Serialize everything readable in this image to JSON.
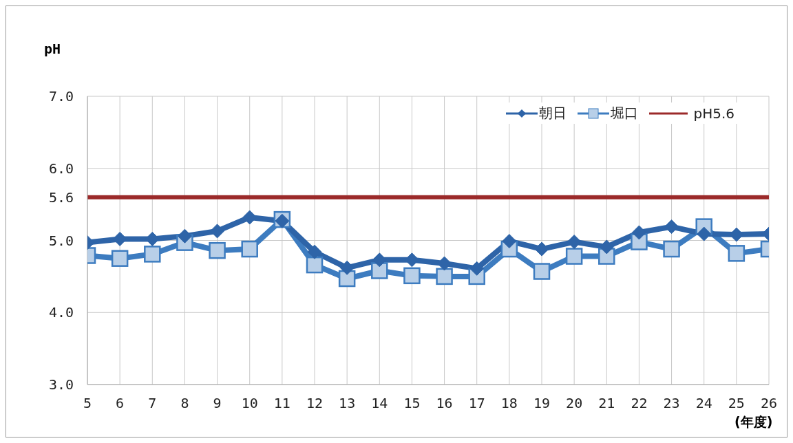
{
  "chart_data": {
    "type": "line",
    "ylabel": "pH",
    "xlabel": "(年度)",
    "categories": [
      "5",
      "6",
      "7",
      "8",
      "9",
      "10",
      "11",
      "12",
      "13",
      "14",
      "15",
      "16",
      "17",
      "18",
      "19",
      "20",
      "21",
      "22",
      "23",
      "24",
      "25",
      "26"
    ],
    "series": [
      {
        "name": "朝日",
        "color": "#2e64a8",
        "marker": "diamond",
        "values": [
          4.97,
          5.02,
          5.02,
          5.06,
          5.13,
          5.32,
          5.27,
          4.84,
          4.62,
          4.73,
          4.73,
          4.68,
          4.61,
          4.99,
          4.88,
          4.98,
          4.91,
          5.11,
          5.19,
          5.09,
          5.08,
          5.09
        ]
      },
      {
        "name": "堀口",
        "color": "#3d7cc0",
        "marker": "square",
        "values": [
          4.79,
          4.75,
          4.81,
          4.97,
          4.86,
          4.88,
          5.29,
          4.66,
          4.47,
          4.58,
          4.51,
          4.5,
          4.5,
          4.88,
          4.57,
          4.78,
          4.78,
          4.98,
          4.88,
          5.19,
          4.82,
          4.88
        ]
      }
    ],
    "ylim": [
      3,
      7
    ],
    "yticks": [
      {
        "value": 3,
        "label": "3.0"
      },
      {
        "value": 4,
        "label": "4.0"
      },
      {
        "value": 5,
        "label": "5.0"
      },
      {
        "value": 5.6,
        "label": "5.6"
      },
      {
        "value": 6,
        "label": "6.0"
      },
      {
        "value": 7,
        "label": "7.0"
      }
    ],
    "ref_lines": [
      {
        "axis": "y",
        "value": 5.6,
        "label": "pH5.6",
        "color": "#9b2a2a"
      }
    ],
    "grid": true,
    "legend": "top right"
  }
}
